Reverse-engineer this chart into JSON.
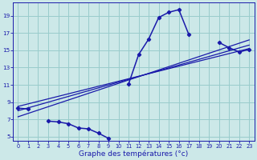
{
  "xlabel": "Graphe des températures (°c)",
  "bg_color": "#cce8e8",
  "line_color": "#1a1aaa",
  "grid_color": "#99cccc",
  "xlim": [
    -0.5,
    23.5
  ],
  "ylim": [
    4.5,
    20.5
  ],
  "xticks": [
    0,
    1,
    2,
    3,
    4,
    5,
    6,
    7,
    8,
    9,
    10,
    11,
    12,
    13,
    14,
    15,
    16,
    17,
    18,
    19,
    20,
    21,
    22,
    23
  ],
  "yticks": [
    5,
    7,
    9,
    11,
    13,
    15,
    17,
    19
  ],
  "hours": [
    0,
    1,
    2,
    3,
    4,
    5,
    6,
    7,
    8,
    9,
    10,
    11,
    12,
    13,
    14,
    15,
    16,
    17,
    18,
    19,
    20,
    21,
    22,
    23
  ],
  "temps": [
    8.3,
    8.2,
    null,
    6.8,
    6.7,
    6.5,
    6.0,
    5.9,
    5.4,
    4.8,
    null,
    11.1,
    14.5,
    16.3,
    18.8,
    19.4,
    19.7,
    16.8,
    null,
    null,
    15.9,
    15.3,
    14.8,
    15.1
  ],
  "trend1_x": [
    0,
    23
  ],
  "trend1_y": [
    8.5,
    15.2
  ],
  "trend2_x": [
    0,
    23
  ],
  "trend2_y": [
    8.0,
    15.6
  ],
  "trend3_x": [
    0,
    23
  ],
  "trend3_y": [
    7.3,
    16.2
  ],
  "figwidth": 3.2,
  "figheight": 2.0,
  "dpi": 100
}
